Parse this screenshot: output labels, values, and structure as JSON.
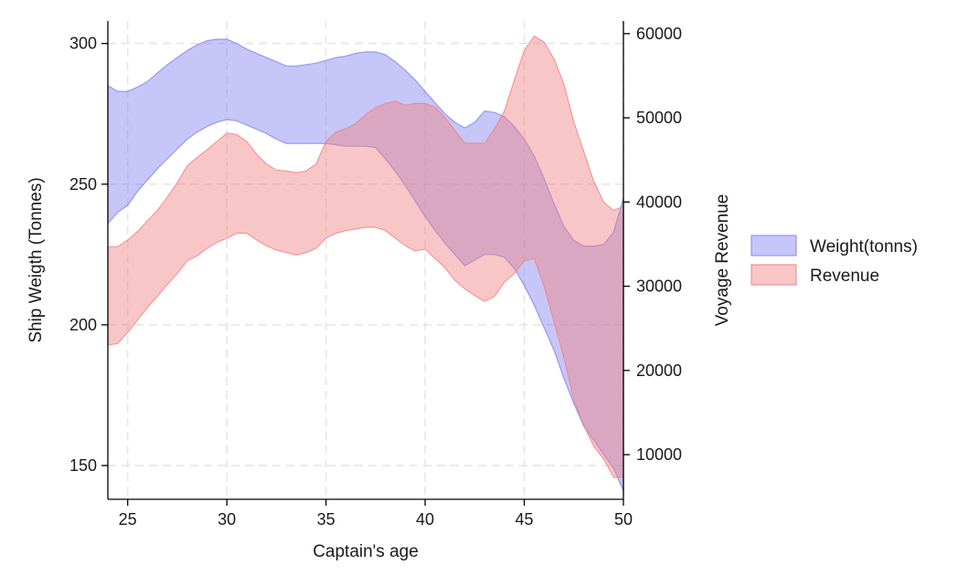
{
  "chart_data": {
    "type": "area",
    "x_axis": {
      "label": "Captain's age",
      "range": [
        24,
        50
      ],
      "ticks": [
        25,
        30,
        35,
        40,
        45,
        50
      ]
    },
    "y_left": {
      "label": "Ship Weigth (Tonnes)",
      "range": [
        138,
        308
      ],
      "ticks": [
        150,
        200,
        250,
        300
      ]
    },
    "y_right": {
      "label": "Voyage Revenue",
      "range": [
        4700,
        61500
      ],
      "ticks": [
        10000,
        20000,
        30000,
        40000,
        50000,
        60000
      ]
    },
    "grid": true,
    "legend": {
      "position": "right"
    },
    "series": [
      {
        "name": "Weight(tonns)",
        "axis": "left",
        "color": "#8080f0",
        "x": [
          24,
          24.5,
          25,
          25.5,
          26,
          26.5,
          27,
          27.5,
          28,
          28.5,
          29,
          29.5,
          30,
          30.5,
          31,
          31.5,
          32,
          32.5,
          33,
          33.5,
          34,
          34.5,
          35,
          35.5,
          36,
          36.5,
          37,
          37.5,
          38,
          38.5,
          39,
          39.5,
          40,
          40.5,
          41,
          41.5,
          42,
          42.5,
          43,
          43.5,
          44,
          44.5,
          45,
          45.5,
          46,
          46.5,
          47,
          47.5,
          48,
          48.5,
          49,
          49.5,
          50
        ],
        "upper": [
          285,
          283,
          283,
          284.5,
          286.5,
          289.5,
          292.5,
          295,
          297.5,
          299.5,
          301,
          301.5,
          301.5,
          300,
          298,
          296.5,
          295,
          293.5,
          292,
          292,
          292.5,
          293,
          294,
          295,
          295.5,
          296.5,
          297,
          297,
          296,
          293.5,
          290.5,
          287,
          283,
          279,
          275,
          272,
          270,
          272,
          276,
          275.5,
          274,
          270.5,
          266,
          260,
          252,
          243,
          235,
          230,
          228,
          228,
          228.5,
          233,
          245
        ],
        "lower": [
          236,
          240,
          242.5,
          247.5,
          251.5,
          255.5,
          259,
          262.5,
          266,
          268.5,
          270.5,
          272,
          273,
          272.5,
          271,
          269.5,
          268,
          266,
          264.5,
          264.5,
          264.5,
          264.5,
          264.5,
          264,
          263.5,
          263.5,
          263.5,
          263,
          259,
          254.5,
          249.5,
          244,
          238.5,
          233.5,
          229,
          225,
          221,
          223,
          225,
          225,
          224,
          220,
          214,
          207,
          199,
          191,
          181,
          172,
          164,
          159,
          154,
          149,
          141
        ]
      },
      {
        "name": "Revenue",
        "axis": "right",
        "color": "#f08080",
        "x": [
          24,
          24.5,
          25,
          25.5,
          26,
          26.5,
          27,
          27.5,
          28,
          28.5,
          29,
          29.5,
          30,
          30.5,
          31,
          31.5,
          32,
          32.5,
          33,
          33.5,
          34,
          34.5,
          35,
          35.5,
          36,
          36.5,
          37,
          37.5,
          38,
          38.5,
          39,
          39.5,
          40,
          40.5,
          41,
          41.5,
          42,
          42.5,
          43,
          43.5,
          44,
          44.5,
          45,
          45.5,
          46,
          46.5,
          47,
          47.5,
          48,
          48.5,
          49,
          49.5,
          50
        ],
        "upper": [
          34700,
          34700,
          35500,
          36500,
          37800,
          39000,
          40600,
          42300,
          44300,
          45300,
          46200,
          47200,
          48200,
          48000,
          47200,
          45700,
          44500,
          43800,
          43700,
          43500,
          43700,
          44500,
          47200,
          48300,
          48700,
          49300,
          50400,
          51200,
          51700,
          52000,
          51500,
          51700,
          51700,
          51300,
          50000,
          48500,
          47000,
          47000,
          47000,
          48700,
          50800,
          54500,
          58000,
          59700,
          59000,
          57000,
          54000,
          49500,
          46000,
          42500,
          40000,
          39000,
          39500
        ],
        "lower": [
          23000,
          23200,
          24500,
          26000,
          27500,
          28800,
          30200,
          31500,
          33000,
          33600,
          34500,
          35200,
          35700,
          36300,
          36300,
          35500,
          34800,
          34300,
          34000,
          33700,
          34000,
          34500,
          35700,
          36300,
          36600,
          36800,
          37000,
          37000,
          36600,
          35700,
          34800,
          34200,
          34400,
          33300,
          32200,
          30700,
          29700,
          28900,
          28200,
          28800,
          30500,
          31500,
          33000,
          33300,
          30000,
          25800,
          21500,
          16500,
          13500,
          11000,
          9500,
          7300,
          7300
        ]
      }
    ]
  }
}
